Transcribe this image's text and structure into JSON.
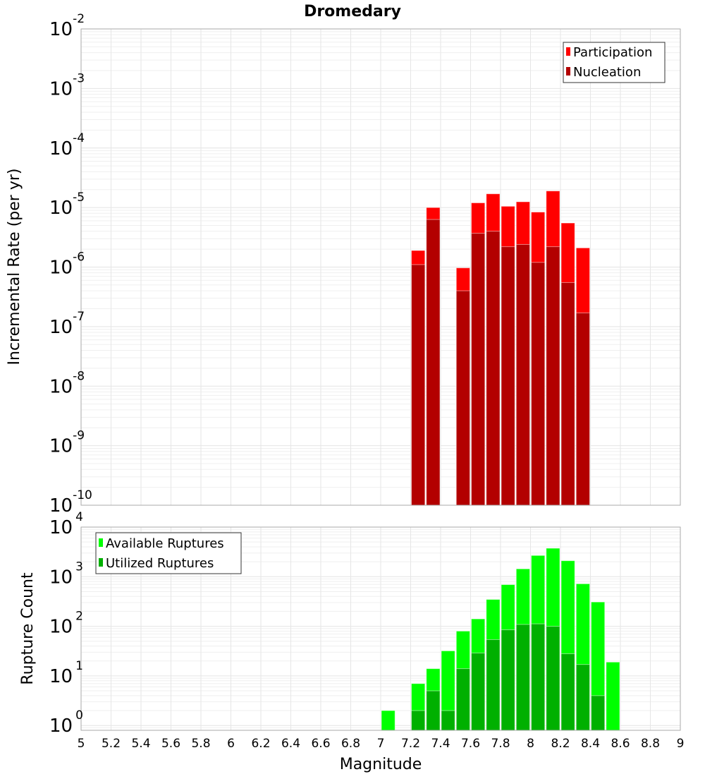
{
  "chart_data": [
    {
      "type": "bar",
      "title": "Dromedary",
      "xlabel": "Magnitude",
      "ylabel": "Incremental Rate (per yr)",
      "yscale": "log",
      "ylim": [
        1e-10,
        0.01
      ],
      "xlim": [
        5,
        9
      ],
      "bin_width": 0.1,
      "y_tick_exponents": [
        "-10",
        "-9",
        "-8",
        "-7",
        "-6",
        "-5",
        "-4",
        "-3",
        "-2"
      ],
      "legend_position": "top-right",
      "grid": true,
      "series": [
        {
          "name": "Participation",
          "color": "#ff0000",
          "x": [
            7.25,
            7.35,
            7.55,
            7.65,
            7.75,
            7.85,
            7.95,
            8.05,
            8.15,
            8.25,
            8.35
          ],
          "values": [
            1.9e-06,
            1e-05,
            9.7e-07,
            1.2e-05,
            1.7e-05,
            1.05e-05,
            1.25e-05,
            8.4e-06,
            1.9e-05,
            5.5e-06,
            2.1e-06
          ]
        },
        {
          "name": "Nucleation",
          "color": "#b30000",
          "x": [
            7.25,
            7.35,
            7.55,
            7.65,
            7.75,
            7.85,
            7.95,
            8.05,
            8.15,
            8.25,
            8.35
          ],
          "values": [
            1.1e-06,
            6.3e-06,
            4e-07,
            3.7e-06,
            4e-06,
            2.2e-06,
            2.4e-06,
            1.2e-06,
            2.2e-06,
            5.5e-07,
            1.7e-07
          ]
        }
      ]
    },
    {
      "type": "bar",
      "xlabel": "Magnitude",
      "ylabel": "Rupture Count",
      "yscale": "log",
      "ylim": [
        0.8,
        10000
      ],
      "xlim": [
        5,
        9
      ],
      "bin_width": 0.1,
      "y_tick_exponents": [
        "0",
        "1",
        "2",
        "3",
        "4"
      ],
      "x_tick_labels": [
        "5",
        "5.2",
        "5.4",
        "5.6",
        "5.8",
        "6",
        "6.2",
        "6.4",
        "6.6",
        "6.8",
        "7",
        "7.2",
        "7.4",
        "7.6",
        "7.8",
        "8",
        "8.2",
        "8.4",
        "8.6",
        "8.8",
        "9"
      ],
      "legend_position": "top-left",
      "grid": true,
      "series": [
        {
          "name": "Available Ruptures",
          "color": "#00ff00",
          "x": [
            7.05,
            7.25,
            7.35,
            7.45,
            7.55,
            7.65,
            7.75,
            7.85,
            7.95,
            8.05,
            8.15,
            8.25,
            8.35,
            8.45,
            8.55
          ],
          "values": [
            2,
            7,
            14,
            32,
            80,
            141,
            348,
            692,
            1440,
            2680,
            3750,
            2100,
            720,
            309,
            19
          ]
        },
        {
          "name": "Utilized Ruptures",
          "color": "#00b000",
          "x": [
            7.25,
            7.35,
            7.45,
            7.55,
            7.65,
            7.75,
            7.85,
            7.95,
            8.05,
            8.15,
            8.25,
            8.35,
            8.45
          ],
          "values": [
            2,
            5,
            2,
            14,
            29,
            54,
            85,
            109,
            112,
            100,
            28,
            17,
            4
          ]
        }
      ]
    }
  ],
  "tick_base": "10"
}
